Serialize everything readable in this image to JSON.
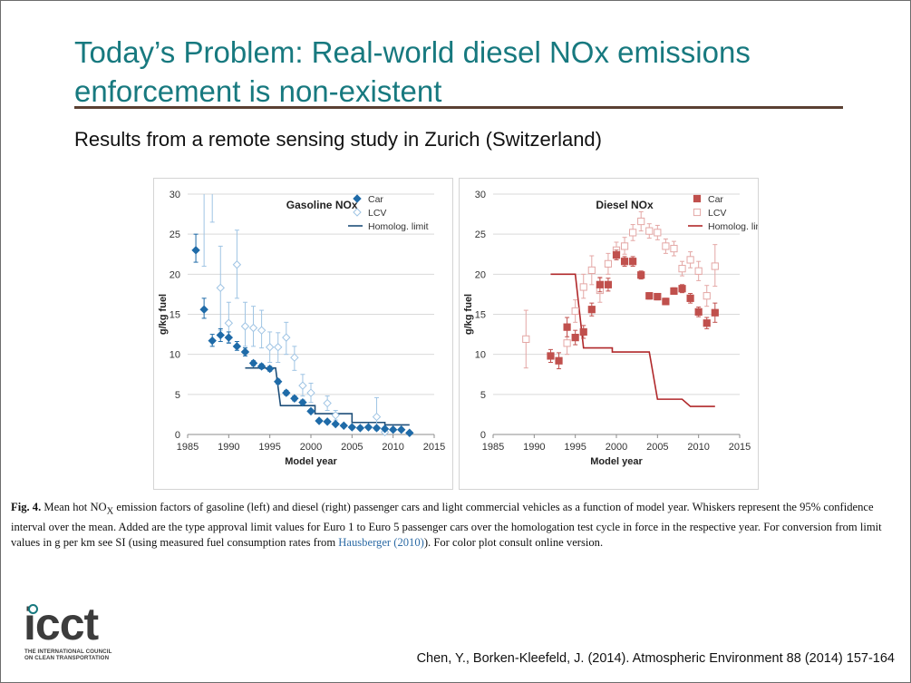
{
  "slide": {
    "title_line1": "Today’s Problem: Real-world diesel NOx emissions",
    "title_line2": "enforcement is non-existent",
    "subtitle": "Results from a remote sensing study in Zurich (Switzerland)",
    "caption": {
      "fig_label": "Fig. 4.",
      "text_1": " Mean hot NO",
      "text_sub": "X",
      "text_2": " emission factors of gasoline (left) and diesel (right) passenger cars and light commercial vehicles as a function of model year. Whiskers represent the 95% confidence interval over the mean. Added are the type approval limit values for Euro 1 to Euro 5 passenger cars over the homologation test cycle in force in the respective year. For conversion from limit values in g per km see SI (using measured fuel consumption rates from ",
      "link": "Hausberger (2010)",
      "text_3": "). For color plot consult online version."
    },
    "logo": {
      "name": "icct",
      "line1": "THE INTERNATIONAL COUNCIL",
      "line2": "ON CLEAN TRANSPORTATION",
      "accent": "#17797f"
    },
    "citation": "Chen, Y., Borken-Kleefeld, J. (2014). Atmospheric Environment 88 (2014) 157-164"
  },
  "chart_data": [
    {
      "type": "scatter",
      "title": "Gasoline NOx",
      "xlabel": "Model year",
      "ylabel": "g/kg fuel",
      "xlim": [
        1985,
        2015
      ],
      "ylim": [
        0,
        30
      ],
      "xticks": [
        1985,
        1990,
        1995,
        2000,
        2005,
        2010,
        2015
      ],
      "yticks": [
        0,
        5,
        10,
        15,
        20,
        25,
        30
      ],
      "grid": "horizontal",
      "legend_position": "top-right",
      "colors": {
        "car": "#1f6ba8",
        "lcv": "#9fc4e4",
        "limit": "#1e4f7a"
      },
      "series": [
        {
          "name": "Car",
          "marker": "filled-diamond",
          "points": [
            {
              "x": 1986,
              "y": 23.0,
              "lo": 21.5,
              "hi": 25.0
            },
            {
              "x": 1987,
              "y": 15.6,
              "lo": 14.5,
              "hi": 17.0
            },
            {
              "x": 1988,
              "y": 11.7,
              "lo": 11.0,
              "hi": 12.5
            },
            {
              "x": 1989,
              "y": 12.4,
              "lo": 11.6,
              "hi": 13.2
            },
            {
              "x": 1990,
              "y": 12.1,
              "lo": 11.4,
              "hi": 12.8
            },
            {
              "x": 1991,
              "y": 11.0,
              "lo": 10.5,
              "hi": 11.6
            },
            {
              "x": 1992,
              "y": 10.3,
              "lo": 9.8,
              "hi": 10.8
            },
            {
              "x": 1993,
              "y": 8.9,
              "lo": 8.6,
              "hi": 9.2
            },
            {
              "x": 1994,
              "y": 8.5,
              "lo": 8.2,
              "hi": 8.8
            },
            {
              "x": 1995,
              "y": 8.2,
              "lo": 7.9,
              "hi": 8.5
            },
            {
              "x": 1996,
              "y": 6.6,
              "lo": 6.3,
              "hi": 6.9
            },
            {
              "x": 1997,
              "y": 5.2,
              "lo": 4.9,
              "hi": 5.5
            },
            {
              "x": 1998,
              "y": 4.5,
              "lo": 4.2,
              "hi": 4.8
            },
            {
              "x": 1999,
              "y": 4.0,
              "lo": 3.7,
              "hi": 4.3
            },
            {
              "x": 2000,
              "y": 2.9,
              "lo": 2.7,
              "hi": 3.1
            },
            {
              "x": 2001,
              "y": 1.7,
              "lo": 1.5,
              "hi": 1.9
            },
            {
              "x": 2002,
              "y": 1.6,
              "lo": 1.4,
              "hi": 1.8
            },
            {
              "x": 2003,
              "y": 1.3,
              "lo": 1.1,
              "hi": 1.5
            },
            {
              "x": 2004,
              "y": 1.1,
              "lo": 0.9,
              "hi": 1.3
            },
            {
              "x": 2005,
              "y": 0.9,
              "lo": 0.7,
              "hi": 1.1
            },
            {
              "x": 2006,
              "y": 0.8,
              "lo": 0.6,
              "hi": 1.0
            },
            {
              "x": 2007,
              "y": 0.9,
              "lo": 0.7,
              "hi": 1.1
            },
            {
              "x": 2008,
              "y": 0.8,
              "lo": 0.6,
              "hi": 1.0
            },
            {
              "x": 2009,
              "y": 0.7,
              "lo": 0.5,
              "hi": 0.9
            },
            {
              "x": 2010,
              "y": 0.6,
              "lo": 0.4,
              "hi": 0.8
            },
            {
              "x": 2011,
              "y": 0.6,
              "lo": 0.4,
              "hi": 0.8
            },
            {
              "x": 2012,
              "y": 0.2,
              "lo": 0.1,
              "hi": 0.3
            }
          ]
        },
        {
          "name": "LCV",
          "marker": "open-diamond",
          "points": [
            {
              "x": 1987,
              "y": 30,
              "lo": 21.0,
              "hi": 30
            },
            {
              "x": 1988,
              "y": 30,
              "lo": 26.5,
              "hi": 30
            },
            {
              "x": 1989,
              "y": 18.3,
              "lo": 13.0,
              "hi": 23.5
            },
            {
              "x": 1990,
              "y": 13.9,
              "lo": 11.5,
              "hi": 16.5
            },
            {
              "x": 1991,
              "y": 21.2,
              "lo": 17.0,
              "hi": 25.5
            },
            {
              "x": 1992,
              "y": 13.5,
              "lo": 11.0,
              "hi": 16.5
            },
            {
              "x": 1993,
              "y": 13.3,
              "lo": 11.0,
              "hi": 16.0
            },
            {
              "x": 1994,
              "y": 13.0,
              "lo": 10.8,
              "hi": 15.5
            },
            {
              "x": 1995,
              "y": 10.9,
              "lo": 9.0,
              "hi": 12.8
            },
            {
              "x": 1996,
              "y": 10.9,
              "lo": 9.0,
              "hi": 12.7
            },
            {
              "x": 1997,
              "y": 12.1,
              "lo": 10.0,
              "hi": 14.0
            },
            {
              "x": 1998,
              "y": 9.6,
              "lo": 8.0,
              "hi": 11.0
            },
            {
              "x": 1999,
              "y": 6.1,
              "lo": 4.8,
              "hi": 7.5
            },
            {
              "x": 2000,
              "y": 5.2,
              "lo": 4.0,
              "hi": 6.4
            },
            {
              "x": 2002,
              "y": 3.9,
              "lo": 3.0,
              "hi": 4.8
            },
            {
              "x": 2003,
              "y": 2.4,
              "lo": 1.8,
              "hi": 3.0
            },
            {
              "x": 2008,
              "y": 2.2,
              "lo": 0.5,
              "hi": 4.6
            },
            {
              "x": 2009,
              "y": 0.3,
              "lo": 0.0,
              "hi": 0.8
            }
          ]
        },
        {
          "name": "Homolog. limit",
          "marker": "line",
          "points": [
            {
              "x": 1992,
              "y": 8.3
            },
            {
              "x": 1995.7,
              "y": 8.3
            },
            {
              "x": 1996.3,
              "y": 3.6
            },
            {
              "x": 2000.5,
              "y": 3.6
            },
            {
              "x": 2000.5,
              "y": 2.6
            },
            {
              "x": 2005,
              "y": 2.6
            },
            {
              "x": 2005,
              "y": 1.5
            },
            {
              "x": 2009,
              "y": 1.5
            },
            {
              "x": 2009,
              "y": 1.2
            },
            {
              "x": 2012,
              "y": 1.2
            }
          ]
        }
      ]
    },
    {
      "type": "scatter",
      "title": "Diesel NOx",
      "xlabel": "Model year",
      "ylabel": "g/kg fuel",
      "xlim": [
        1985,
        2015
      ],
      "ylim": [
        0,
        30
      ],
      "xticks": [
        1985,
        1990,
        1995,
        2000,
        2005,
        2010,
        2015
      ],
      "yticks": [
        0,
        5,
        10,
        15,
        20,
        25,
        30
      ],
      "grid": "horizontal",
      "legend_position": "top-right",
      "colors": {
        "car": "#c0504d",
        "lcv": "#e4a7a5",
        "limit": "#b0282a"
      },
      "series": [
        {
          "name": "Car",
          "marker": "filled-square",
          "points": [
            {
              "x": 1992,
              "y": 9.8,
              "lo": 9.0,
              "hi": 10.6
            },
            {
              "x": 1993,
              "y": 9.2,
              "lo": 8.2,
              "hi": 10.2
            },
            {
              "x": 1994,
              "y": 13.4,
              "lo": 12.2,
              "hi": 14.6
            },
            {
              "x": 1995,
              "y": 12.1,
              "lo": 11.2,
              "hi": 13.0
            },
            {
              "x": 1996,
              "y": 12.8,
              "lo": 12.0,
              "hi": 13.6
            },
            {
              "x": 1997,
              "y": 15.6,
              "lo": 14.8,
              "hi": 16.4
            },
            {
              "x": 1998,
              "y": 18.7,
              "lo": 17.8,
              "hi": 19.6
            },
            {
              "x": 1999,
              "y": 18.7,
              "lo": 17.9,
              "hi": 19.5
            },
            {
              "x": 2000,
              "y": 22.4,
              "lo": 21.8,
              "hi": 23.0
            },
            {
              "x": 2001,
              "y": 21.6,
              "lo": 21.0,
              "hi": 22.2
            },
            {
              "x": 2002,
              "y": 21.6,
              "lo": 21.0,
              "hi": 22.2
            },
            {
              "x": 2003,
              "y": 19.9,
              "lo": 19.4,
              "hi": 20.4
            },
            {
              "x": 2004,
              "y": 17.3,
              "lo": 16.9,
              "hi": 17.7
            },
            {
              "x": 2005,
              "y": 17.2,
              "lo": 16.8,
              "hi": 17.6
            },
            {
              "x": 2006,
              "y": 16.6,
              "lo": 16.2,
              "hi": 17.0
            },
            {
              "x": 2007,
              "y": 17.9,
              "lo": 17.5,
              "hi": 18.3
            },
            {
              "x": 2008,
              "y": 18.2,
              "lo": 17.7,
              "hi": 18.7
            },
            {
              "x": 2009,
              "y": 17.0,
              "lo": 16.4,
              "hi": 17.6
            },
            {
              "x": 2010,
              "y": 15.3,
              "lo": 14.7,
              "hi": 15.9
            },
            {
              "x": 2011,
              "y": 13.9,
              "lo": 13.2,
              "hi": 14.6
            },
            {
              "x": 2012,
              "y": 15.2,
              "lo": 14.0,
              "hi": 16.4
            }
          ]
        },
        {
          "name": "LCV",
          "marker": "open-square",
          "points": [
            {
              "x": 1989,
              "y": 11.9,
              "lo": 8.3,
              "hi": 15.5
            },
            {
              "x": 1994,
              "y": 11.4,
              "lo": 10.0,
              "hi": 13.0
            },
            {
              "x": 1995,
              "y": 15.4,
              "lo": 14.0,
              "hi": 16.8
            },
            {
              "x": 1996,
              "y": 18.4,
              "lo": 17.0,
              "hi": 20.0
            },
            {
              "x": 1997,
              "y": 20.5,
              "lo": 18.7,
              "hi": 22.3
            },
            {
              "x": 1998,
              "y": 18.0,
              "lo": 16.5,
              "hi": 19.5
            },
            {
              "x": 1999,
              "y": 21.3,
              "lo": 20.0,
              "hi": 22.6
            },
            {
              "x": 2000,
              "y": 23.0,
              "lo": 22.0,
              "hi": 24.0
            },
            {
              "x": 2001,
              "y": 23.5,
              "lo": 22.5,
              "hi": 24.6
            },
            {
              "x": 2002,
              "y": 25.2,
              "lo": 24.2,
              "hi": 26.2
            },
            {
              "x": 2003,
              "y": 26.6,
              "lo": 25.4,
              "hi": 27.8
            },
            {
              "x": 2004,
              "y": 25.4,
              "lo": 24.5,
              "hi": 26.3
            },
            {
              "x": 2005,
              "y": 25.2,
              "lo": 24.3,
              "hi": 26.1
            },
            {
              "x": 2006,
              "y": 23.5,
              "lo": 22.6,
              "hi": 24.4
            },
            {
              "x": 2007,
              "y": 23.2,
              "lo": 22.3,
              "hi": 24.1
            },
            {
              "x": 2008,
              "y": 20.7,
              "lo": 19.8,
              "hi": 21.6
            },
            {
              "x": 2009,
              "y": 21.8,
              "lo": 20.8,
              "hi": 22.8
            },
            {
              "x": 2010,
              "y": 20.4,
              "lo": 19.2,
              "hi": 21.6
            },
            {
              "x": 2011,
              "y": 17.3,
              "lo": 16.0,
              "hi": 18.6
            },
            {
              "x": 2012,
              "y": 21.0,
              "lo": 18.5,
              "hi": 23.7
            }
          ]
        },
        {
          "name": "Homolog. limit",
          "marker": "line",
          "points": [
            {
              "x": 1992,
              "y": 20.0
            },
            {
              "x": 1995,
              "y": 20.0
            },
            {
              "x": 1996,
              "y": 10.8
            },
            {
              "x": 1999.5,
              "y": 10.8
            },
            {
              "x": 1999.5,
              "y": 10.3
            },
            {
              "x": 2004,
              "y": 10.3
            },
            {
              "x": 2005,
              "y": 4.4
            },
            {
              "x": 2008,
              "y": 4.4
            },
            {
              "x": 2009,
              "y": 3.5
            },
            {
              "x": 2012,
              "y": 3.5
            }
          ]
        }
      ]
    }
  ]
}
